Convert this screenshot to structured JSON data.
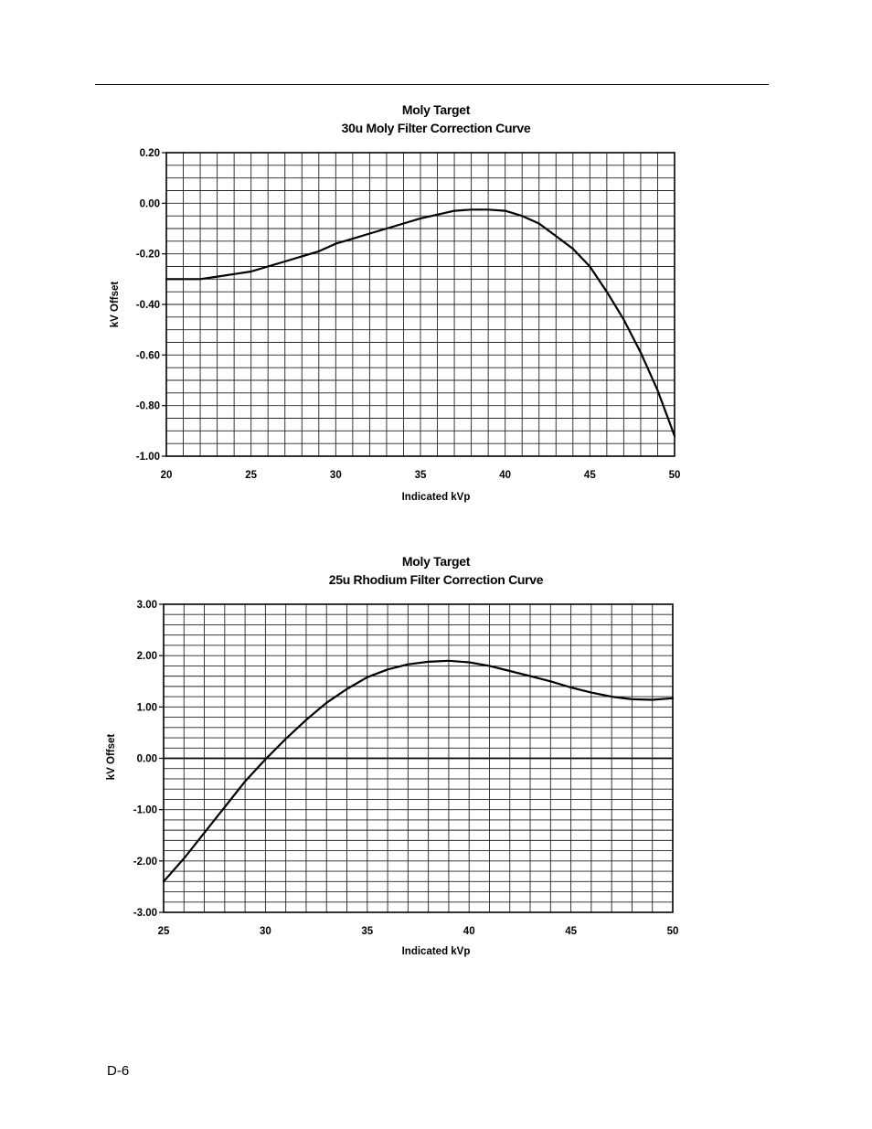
{
  "footer": {
    "page_label": "D-6"
  },
  "chart_data": [
    {
      "type": "line",
      "title": "Moly Target",
      "subtitle": "30u Moly Filter Correction Curve",
      "xlabel": "Indicated kVp",
      "ylabel": "kV Offset",
      "xlim": [
        20,
        50
      ],
      "ylim": [
        -1.0,
        0.2
      ],
      "xticks": [
        20,
        25,
        30,
        35,
        40,
        45,
        50
      ],
      "xtick_labels": [
        "20",
        "25",
        "30",
        "35",
        "40",
        "45",
        "50"
      ],
      "yticks": [
        0.2,
        0.0,
        -0.2,
        -0.4,
        -0.6,
        -0.8,
        -1.0
      ],
      "ytick_labels": [
        "0.20",
        "0.00",
        "-0.20",
        "-0.40",
        "-0.60",
        "-0.80",
        "-1.00"
      ],
      "grid": true,
      "grid_x_step": 1,
      "grid_y_step": 0.05,
      "series": [
        {
          "x": [
            20,
            21,
            22,
            23,
            24,
            25,
            26,
            27,
            28,
            29,
            30,
            31,
            32,
            33,
            34,
            35,
            36,
            37,
            38,
            39,
            40,
            41,
            42,
            43,
            44,
            45,
            46,
            47,
            48,
            49,
            50
          ],
          "y": [
            -0.3,
            -0.3,
            -0.3,
            -0.29,
            -0.28,
            -0.27,
            -0.25,
            -0.23,
            -0.21,
            -0.19,
            -0.16,
            -0.14,
            -0.12,
            -0.1,
            -0.08,
            -0.06,
            -0.045,
            -0.03,
            -0.025,
            -0.025,
            -0.03,
            -0.05,
            -0.08,
            -0.13,
            -0.18,
            -0.25,
            -0.35,
            -0.46,
            -0.59,
            -0.74,
            -0.92
          ]
        }
      ]
    },
    {
      "type": "line",
      "title": "Moly Target",
      "subtitle": "25u Rhodium Filter Correction Curve",
      "xlabel": "Indicated kVp",
      "ylabel": "kV Offset",
      "xlim": [
        25,
        50
      ],
      "ylim": [
        -3.0,
        3.0
      ],
      "xticks": [
        25,
        30,
        35,
        40,
        45,
        50
      ],
      "xtick_labels": [
        "25",
        "30",
        "35",
        "40",
        "45",
        "50"
      ],
      "yticks": [
        3.0,
        2.0,
        1.0,
        0.0,
        -1.0,
        -2.0,
        -3.0
      ],
      "ytick_labels": [
        "3.00",
        "2.00",
        "1.00",
        "0.00",
        "-1.00",
        "-2.00",
        "-3.00"
      ],
      "grid": true,
      "grid_x_step": 1,
      "grid_y_step": 0.2,
      "zero_line": true,
      "series": [
        {
          "x": [
            25,
            26,
            27,
            28,
            29,
            30,
            31,
            32,
            33,
            34,
            35,
            36,
            37,
            38,
            39,
            40,
            41,
            42,
            43,
            44,
            45,
            46,
            47,
            48,
            49,
            50
          ],
          "y": [
            -2.4,
            -1.95,
            -1.45,
            -0.95,
            -0.45,
            -0.02,
            0.38,
            0.75,
            1.08,
            1.35,
            1.58,
            1.73,
            1.83,
            1.88,
            1.9,
            1.87,
            1.8,
            1.7,
            1.6,
            1.5,
            1.38,
            1.28,
            1.2,
            1.15,
            1.14,
            1.17
          ]
        }
      ]
    }
  ]
}
